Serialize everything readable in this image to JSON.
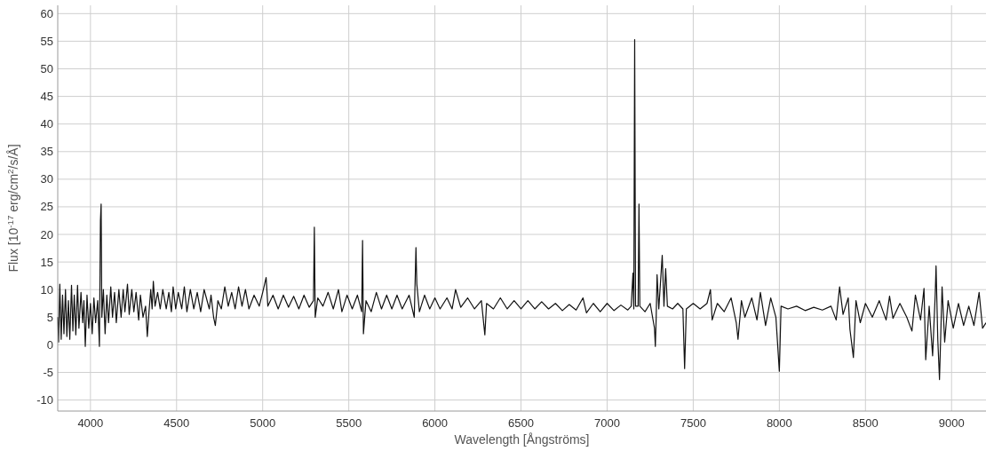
{
  "chart_data": {
    "type": "line",
    "xlabel": "Wavelength [Ångströms]",
    "ylabel": "Flux [10$^{-17}$ erg/cm$^{2}$/s/Å]",
    "xlim": [
      3810,
      9200
    ],
    "ylim": [
      -12,
      61.5
    ],
    "xticks": [
      4000,
      4500,
      5000,
      5500,
      6000,
      6500,
      7000,
      7500,
      8000,
      8500,
      9000
    ],
    "yticks": [
      -10,
      -5,
      0,
      5,
      10,
      15,
      20,
      25,
      30,
      35,
      40,
      45,
      50,
      55,
      60
    ],
    "grid": true,
    "marker": "none",
    "line_style": "solid",
    "series": [
      {
        "color": "#111111",
        "x": [
          3810,
          3815,
          3822,
          3830,
          3838,
          3846,
          3855,
          3863,
          3872,
          3880,
          3890,
          3898,
          3906,
          3915,
          3925,
          3933,
          3945,
          3955,
          3962,
          3970,
          3980,
          3990,
          4000,
          4010,
          4020,
          4030,
          4042,
          4052,
          4058,
          4062,
          4066,
          4075,
          4085,
          4095,
          4105,
          4118,
          4128,
          4140,
          4150,
          4165,
          4178,
          4190,
          4200,
          4215,
          4225,
          4240,
          4252,
          4265,
          4280,
          4290,
          4305,
          4320,
          4330,
          4340,
          4350,
          4358,
          4365,
          4375,
          4390,
          4405,
          4420,
          4440,
          4455,
          4470,
          4480,
          4495,
          4510,
          4530,
          4545,
          4560,
          4580,
          4600,
          4620,
          4640,
          4660,
          4690,
          4700,
          4715,
          4725,
          4740,
          4760,
          4780,
          4800,
          4820,
          4840,
          4860,
          4880,
          4900,
          4920,
          4950,
          4980,
          5000,
          5020,
          5030,
          5060,
          5090,
          5120,
          5150,
          5180,
          5210,
          5240,
          5270,
          5295,
          5300,
          5305,
          5320,
          5350,
          5380,
          5410,
          5440,
          5460,
          5490,
          5520,
          5550,
          5575,
          5580,
          5585,
          5600,
          5630,
          5660,
          5690,
          5720,
          5750,
          5780,
          5810,
          5850,
          5880,
          5890,
          5895,
          5910,
          5940,
          5970,
          6000,
          6030,
          6070,
          6100,
          6120,
          6150,
          6190,
          6230,
          6270,
          6290,
          6300,
          6340,
          6380,
          6420,
          6460,
          6500,
          6540,
          6580,
          6620,
          6660,
          6700,
          6740,
          6780,
          6820,
          6860,
          6880,
          6920,
          6960,
          7000,
          7040,
          7080,
          7120,
          7140,
          7150,
          7155,
          7160,
          7165,
          7180,
          7185,
          7190,
          7220,
          7250,
          7275,
          7280,
          7285,
          7290,
          7300,
          7320,
          7330,
          7340,
          7350,
          7380,
          7410,
          7440,
          7450,
          7460,
          7500,
          7540,
          7580,
          7600,
          7610,
          7640,
          7680,
          7720,
          7750,
          7760,
          7780,
          7800,
          7840,
          7870,
          7890,
          7920,
          7950,
          7980,
          8000,
          8010,
          8050,
          8100,
          8150,
          8200,
          8250,
          8300,
          8330,
          8350,
          8370,
          8400,
          8410,
          8430,
          8445,
          8470,
          8500,
          8540,
          8580,
          8620,
          8640,
          8660,
          8700,
          8740,
          8770,
          8790,
          8820,
          8840,
          8850,
          8870,
          8890,
          8905,
          8910,
          8920,
          8930,
          8945,
          8960,
          8980,
          9010,
          9040,
          9070,
          9100,
          9130,
          9160,
          9180,
          9200
        ],
        "values": [
          5,
          0.5,
          11,
          1,
          9,
          2,
          10,
          1.5,
          8,
          1,
          10.8,
          2.5,
          9,
          1.8,
          10.8,
          3,
          9.5,
          4,
          8,
          -0.3,
          9,
          3,
          7.5,
          2,
          8.5,
          4,
          8,
          -0.3,
          22.5,
          25.5,
          5,
          10,
          2,
          9,
          4,
          10.5,
          5,
          9.5,
          4,
          10,
          5,
          10,
          6,
          11,
          5.5,
          10,
          6,
          9.5,
          4.5,
          9,
          5,
          7,
          1.5,
          6,
          10,
          6.5,
          11.5,
          7,
          9.5,
          6.5,
          10,
          6.5,
          9.5,
          6,
          10.5,
          6.5,
          9.5,
          6.5,
          10.5,
          6,
          10,
          6.5,
          9.5,
          6,
          10,
          6.5,
          9,
          5,
          3.5,
          8,
          6.5,
          10.5,
          7,
          9.5,
          6.5,
          10.5,
          7,
          10,
          6.5,
          9,
          7,
          9.5,
          12.2,
          7,
          9,
          6.5,
          9,
          6.8,
          8.8,
          6.5,
          9,
          6.8,
          8,
          21.3,
          5,
          8.5,
          7,
          9.5,
          6.5,
          10,
          6,
          9,
          6.5,
          9,
          6,
          18.9,
          2,
          8,
          6,
          9.5,
          6.5,
          9,
          6.5,
          9,
          6.5,
          9,
          5,
          17.6,
          11,
          6,
          9,
          6.5,
          8.5,
          6.5,
          8.5,
          6.5,
          10,
          6.8,
          8.5,
          6.5,
          8,
          1.8,
          7.5,
          6.5,
          8.5,
          6.5,
          8,
          6.5,
          8,
          6.5,
          7.8,
          6.5,
          7.5,
          6.2,
          7.3,
          6.3,
          8.5,
          5.8,
          7.5,
          6,
          7.5,
          6.2,
          7.2,
          6.3,
          7,
          13,
          6.5,
          55.3,
          7,
          7,
          25.5,
          7,
          6,
          7.5,
          3,
          -0.3,
          5,
          12.7,
          6.5,
          16.2,
          7,
          13.8,
          7,
          6.5,
          7.5,
          6.5,
          -4.3,
          6.5,
          7.5,
          6.5,
          7.5,
          10,
          4.5,
          7.5,
          6,
          8.5,
          4,
          1,
          8,
          5,
          8.5,
          4.5,
          9.5,
          3.5,
          8.5,
          5,
          -4.8,
          7,
          6.5,
          7,
          6.2,
          6.8,
          6.3,
          7,
          4.5,
          10.5,
          5.5,
          8.5,
          2.8,
          -2.3,
          8,
          4,
          7.5,
          5,
          8,
          4.5,
          8.8,
          4.8,
          7.5,
          5,
          2.5,
          9,
          4.5,
          10.2,
          -2.7,
          7,
          -2,
          9,
          14.3,
          1,
          -6.3,
          10.5,
          0.5,
          8,
          3,
          7.5,
          3.5,
          7,
          3.5,
          9.5,
          3,
          4
        ]
      }
    ]
  }
}
